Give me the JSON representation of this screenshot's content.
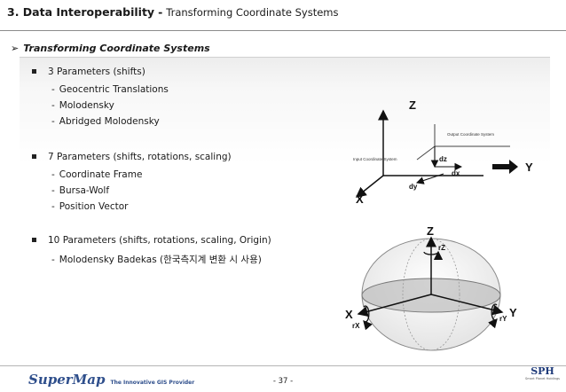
{
  "header": {
    "number_title": "3. Data Interoperability",
    "separator": "-",
    "subtitle": "Transforming Coordinate Systems"
  },
  "section": {
    "arrow": "➢",
    "title": "Transforming Coordinate Systems"
  },
  "groups": [
    {
      "label": "3 Parameters (shifts)",
      "items": [
        "Geocentric Translations",
        "Molodensky",
        "Abridged Molodensky"
      ]
    },
    {
      "label": "7 Parameters (shifts, rotations, scaling)",
      "items": [
        "Coordinate Frame",
        "Bursa-Wolf",
        "Position Vector"
      ]
    },
    {
      "label": "10 Parameters (shifts, rotations, scaling, Origin)",
      "items": [
        "Molodensky Badekas (한국측지계 변환 시 사용)"
      ]
    }
  ],
  "dash": "-",
  "diagram1": {
    "z": "Z",
    "y": "Y",
    "x": "X",
    "output_label": "Output Coordinate System",
    "input_label": "Input Coordinate System",
    "dz": "dz",
    "dx": "dx",
    "dy": "dy"
  },
  "diagram2": {
    "z": "Z",
    "y": "Y",
    "x": "X",
    "rz": "rZ",
    "ry": "rY",
    "rx": "rX"
  },
  "footer": {
    "brand": "SuperMap",
    "tagline": "The Innovative GIS Provider",
    "page": "- 37 -",
    "partner": "SPH",
    "partner_sub": "Smart Planet Holdings"
  },
  "colors": {
    "brand": "#2f4f8c",
    "partner": "#1f3b7a"
  }
}
